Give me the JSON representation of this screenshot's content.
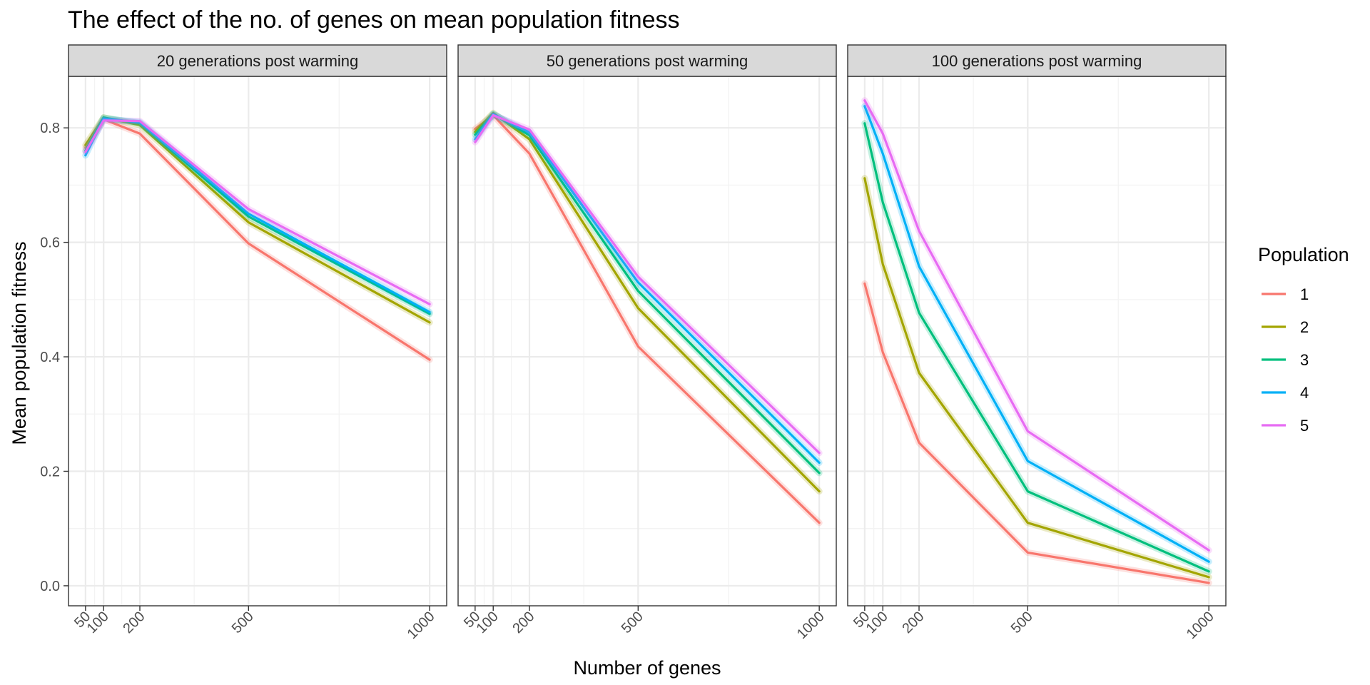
{
  "chart_data": {
    "type": "line",
    "title": "The effect of the no. of genes on mean population fitness",
    "xlabel": "Number of genes",
    "ylabel": "Mean population fitness",
    "x": [
      50,
      100,
      200,
      500,
      1000
    ],
    "x_ticks": [
      "50",
      "100",
      "200",
      "500",
      "1000"
    ],
    "ylim": [
      -0.035,
      0.89
    ],
    "y_ticks": [
      0.0,
      0.2,
      0.4,
      0.6,
      0.8
    ],
    "y_tick_labels": [
      "0.0",
      "0.2",
      "0.4",
      "0.6",
      "0.8"
    ],
    "grid": true,
    "legend": {
      "title": "Population",
      "placement": "right"
    },
    "colors": {
      "1": "#F8766D",
      "2": "#A3A500",
      "3": "#00BF7D",
      "4": "#00B0F6",
      "5": "#E76BF3"
    },
    "panels": [
      {
        "label": "20 generations post warming",
        "series": [
          {
            "name": "1",
            "values": [
              0.765,
              0.815,
              0.79,
              0.598,
              0.395
            ]
          },
          {
            "name": "2",
            "values": [
              0.77,
              0.818,
              0.805,
              0.635,
              0.46
            ]
          },
          {
            "name": "3",
            "values": [
              0.76,
              0.818,
              0.808,
              0.645,
              0.475
            ]
          },
          {
            "name": "4",
            "values": [
              0.752,
              0.816,
              0.81,
              0.65,
              0.478
            ]
          },
          {
            "name": "5",
            "values": [
              0.758,
              0.813,
              0.812,
              0.658,
              0.492
            ]
          }
        ]
      },
      {
        "label": "50 generations post warming",
        "series": [
          {
            "name": "1",
            "values": [
              0.798,
              0.822,
              0.755,
              0.418,
              0.11
            ]
          },
          {
            "name": "2",
            "values": [
              0.793,
              0.826,
              0.78,
              0.485,
              0.165
            ]
          },
          {
            "name": "3",
            "values": [
              0.788,
              0.824,
              0.787,
              0.515,
              0.197
            ]
          },
          {
            "name": "4",
            "values": [
              0.78,
              0.824,
              0.792,
              0.53,
              0.215
            ]
          },
          {
            "name": "5",
            "values": [
              0.775,
              0.822,
              0.797,
              0.54,
              0.232
            ]
          }
        ]
      },
      {
        "label": "100 generations post warming",
        "series": [
          {
            "name": "1",
            "values": [
              0.528,
              0.408,
              0.25,
              0.058,
              0.005
            ]
          },
          {
            "name": "2",
            "values": [
              0.712,
              0.562,
              0.372,
              0.11,
              0.015
            ]
          },
          {
            "name": "3",
            "values": [
              0.808,
              0.67,
              0.477,
              0.165,
              0.025
            ]
          },
          {
            "name": "4",
            "values": [
              0.838,
              0.755,
              0.558,
              0.218,
              0.042
            ]
          },
          {
            "name": "5",
            "values": [
              0.848,
              0.79,
              0.62,
              0.27,
              0.062
            ]
          }
        ]
      }
    ]
  }
}
